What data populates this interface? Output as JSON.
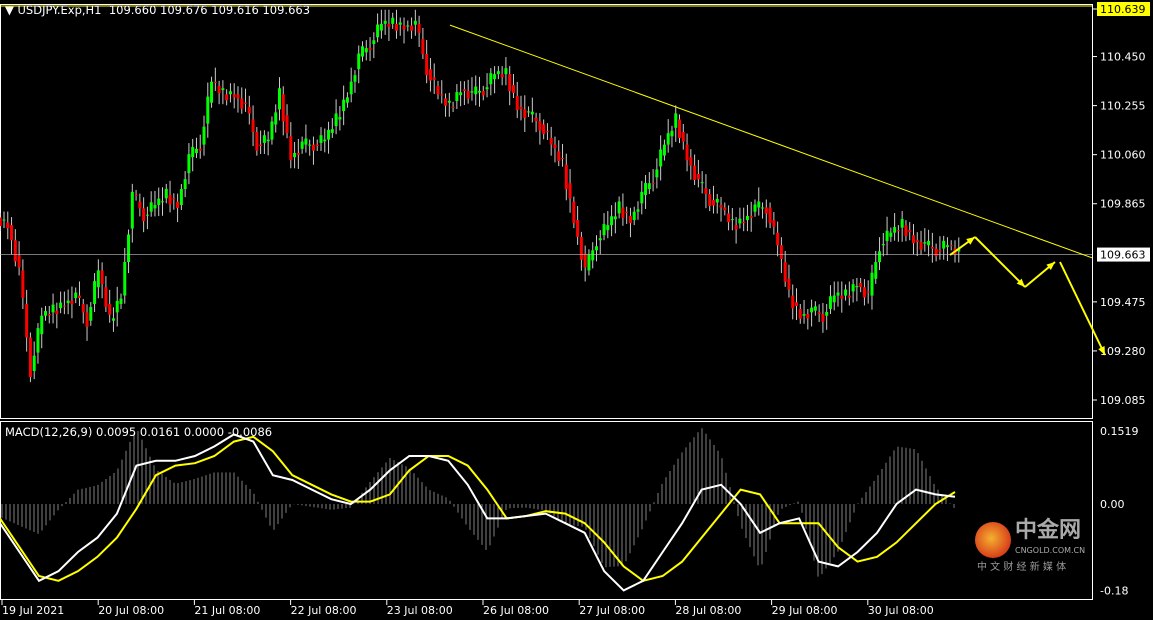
{
  "header": {
    "symbol": "USDJPY.Exp,H1",
    "open": "109.660",
    "high": "109.676",
    "low": "109.616",
    "close": "109.663"
  },
  "macd_label": {
    "name": "MACD(12,26,9)",
    "v1": "0.0095",
    "v2": "0.0161",
    "v3": "0.0000",
    "v4": "-0.0086"
  },
  "watermark": {
    "brand": "中金网",
    "domain": "CNGOLD.COM.CN",
    "tagline": "中 文 财 经 新 媒 体"
  },
  "colors": {
    "bull": "#00ff00",
    "bear": "#ff0000",
    "trend": "#ffff00",
    "macd": "#ffffff",
    "signal": "#ffff00",
    "hist": "#808080",
    "bg": "#000000"
  },
  "chart_data": [
    {
      "type": "candlestick",
      "title": "USDJPY.Exp,H1",
      "ylim": [
        109.0,
        110.66
      ],
      "yticks": [
        "110.639",
        "110.450",
        "110.255",
        "110.060",
        "109.865",
        "109.475",
        "109.280",
        "109.085"
      ],
      "current_price": "109.663",
      "xticks": [
        "19 Jul 2021",
        "20 Jul 08:00",
        "21 Jul 08:00",
        "22 Jul 08:00",
        "23 Jul 08:00",
        "26 Jul 08:00",
        "27 Jul 08:00",
        "28 Jul 08:00",
        "29 Jul 08:00",
        "30 Jul 08:00"
      ],
      "closes": [
        109.78,
        109.6,
        109.2,
        109.42,
        109.44,
        109.47,
        109.5,
        109.4,
        109.6,
        109.4,
        109.5,
        109.9,
        109.82,
        109.86,
        109.9,
        109.86,
        110.05,
        110.1,
        110.35,
        110.3,
        110.3,
        110.25,
        110.1,
        110.12,
        110.3,
        110.05,
        110.1,
        110.1,
        110.12,
        110.2,
        110.3,
        110.45,
        110.5,
        110.58,
        110.58,
        110.57,
        110.58,
        110.4,
        110.3,
        110.25,
        110.32,
        110.3,
        110.32,
        110.38,
        110.38,
        110.25,
        110.22,
        110.18,
        110.1,
        110.02,
        109.8,
        109.6,
        109.72,
        109.78,
        109.85,
        109.8,
        109.9,
        109.97,
        110.1,
        110.2,
        110.05,
        109.95,
        109.88,
        109.85,
        109.78,
        109.8,
        109.85,
        109.85,
        109.7,
        109.5,
        109.42,
        109.44,
        109.42,
        109.5,
        109.5,
        109.55,
        109.5,
        109.7,
        109.75,
        109.78,
        109.72,
        109.7,
        109.68,
        109.7,
        109.663
      ],
      "trendline": {
        "from": 110.575,
        "to": 109.65
      }
    },
    {
      "type": "line",
      "title": "MACD(12,26,9)",
      "ylim": [
        -0.2,
        0.16
      ],
      "yticks": [
        "0.1519",
        "0.00",
        "-0.18"
      ],
      "series": [
        {
          "values": [
            -0.04,
            -0.1,
            -0.16,
            -0.14,
            -0.1,
            -0.07,
            -0.02,
            0.08,
            0.09,
            0.09,
            0.1,
            0.12,
            0.145,
            0.13,
            0.06,
            0.05,
            0.03,
            0.01,
            0.0,
            0.03,
            0.07,
            0.1,
            0.1,
            0.09,
            0.04,
            -0.03,
            -0.03,
            -0.025,
            -0.02,
            -0.04,
            -0.06,
            -0.14,
            -0.18,
            -0.16,
            -0.1,
            -0.04,
            0.03,
            0.04,
            0.0,
            -0.06,
            -0.04,
            -0.03,
            -0.12,
            -0.13,
            -0.1,
            -0.06,
            0.0,
            0.03,
            0.02,
            0.015
          ]
        },
        {
          "values": [
            -0.03,
            -0.09,
            -0.15,
            -0.16,
            -0.14,
            -0.11,
            -0.07,
            -0.01,
            0.06,
            0.08,
            0.085,
            0.1,
            0.13,
            0.14,
            0.11,
            0.06,
            0.04,
            0.02,
            0.005,
            0.005,
            0.02,
            0.07,
            0.1,
            0.1,
            0.08,
            0.03,
            -0.03,
            -0.025,
            -0.015,
            -0.02,
            -0.04,
            -0.08,
            -0.13,
            -0.16,
            -0.15,
            -0.12,
            -0.07,
            -0.02,
            0.03,
            0.02,
            -0.04,
            -0.04,
            -0.04,
            -0.09,
            -0.12,
            -0.11,
            -0.08,
            -0.04,
            0.0,
            0.025
          ]
        }
      ]
    }
  ]
}
